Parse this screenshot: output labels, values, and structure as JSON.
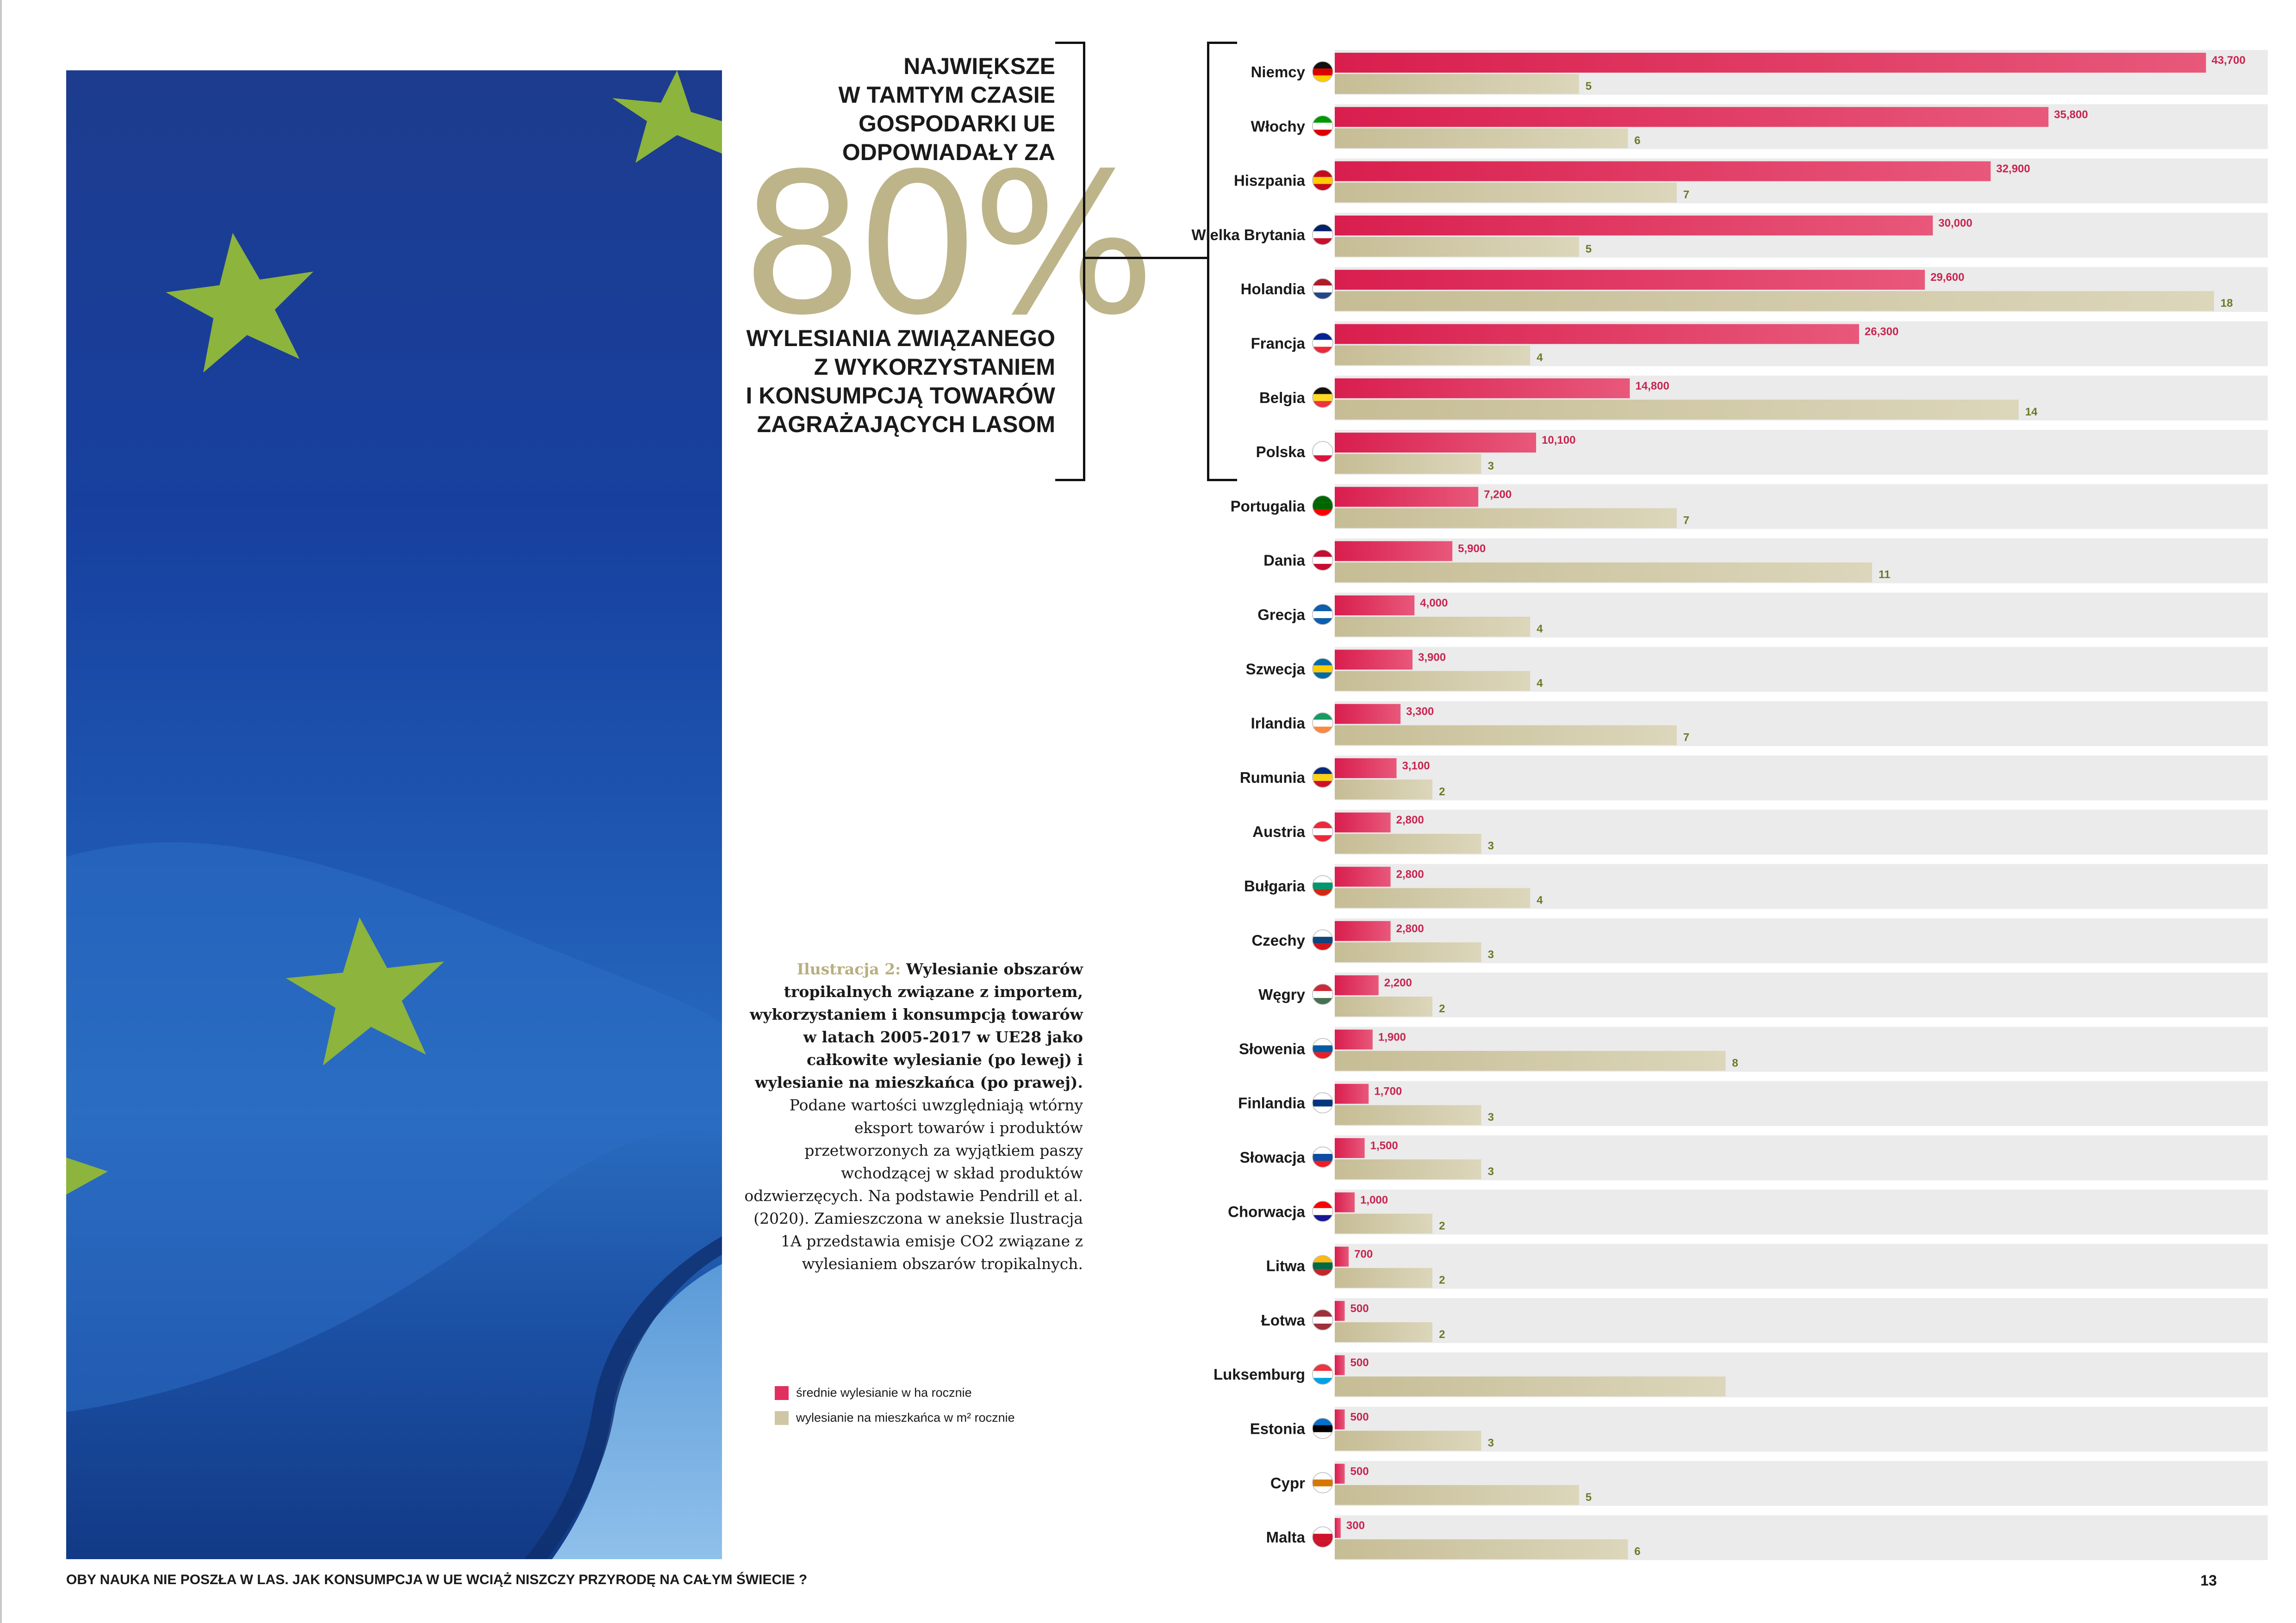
{
  "headline": {
    "top_lines": [
      "NAJWIĘKSZE",
      "W TAMTYM CZASIE",
      "GOSPODARKI UE",
      "ODPOWIADAŁY ZA"
    ],
    "big_number": "80%",
    "bottom_lines": [
      "WYLESIANIA ZWIĄZANEGO",
      "Z WYKORZYSTANIEM",
      "I KONSUMPCJĄ TOWARÓW",
      "ZAGRAŻAJĄCYCH LASOM"
    ]
  },
  "caption": {
    "label": "Ilustracja  2:",
    "bold": " Wylesianie obszarów tropikalnych związane z importem, wykorzystaniem i konsumpcją towarów w latach 2005-2017 w UE28 jako całkowite wylesianie (po lewej) i wylesianie na mieszkańca (po prawej).",
    "text": " Podane wartości uwzględniają wtórny eksport towarów i produktów przetworzonych za wyjątkiem paszy wchodzącej w skład produktów odzwierzęcych. Na podstawie Pendrill et al. (2020). Zamieszczona w aneksie Ilustracja 1A przedstawia emisje CO2 związane z wylesianiem obszarów tropikalnych."
  },
  "legend": {
    "items": [
      {
        "label": "średnie wylesianie w ha rocznie",
        "color": "#e0305f"
      },
      {
        "label": "wylesianie na mieszkańca w m² rocznie",
        "color": "#cfc7a3"
      }
    ]
  },
  "footer": {
    "text": "OBY NAUKA NIE POSZŁA W LAS. JAK KONSUMPCJA W UE WCIĄŻ NISZCZY PRZYRODĘ NA CAŁYM ŚWIECIE ?",
    "page_number": "13"
  },
  "colors": {
    "red_bar_start": "#d91e4e",
    "red_bar_end": "#e8587a",
    "tan_bar_start": "#c6bd95",
    "tan_bar_end": "#dcd6bb",
    "row_background": "#ebebeb",
    "big_number": "#bdb48a"
  },
  "chart_data": {
    "type": "bar",
    "orientation": "horizontal",
    "categories": [
      "Niemcy",
      "Włochy",
      "Hiszpania",
      "Wielka Brytania",
      "Holandia",
      "Francja",
      "Belgia",
      "Polska",
      "Portugalia",
      "Dania",
      "Grecja",
      "Szwecja",
      "Irlandia",
      "Rumunia",
      "Austria",
      "Bułgaria",
      "Czechy",
      "Węgry",
      "Słowenia",
      "Finlandia",
      "Słowacja",
      "Chorwacja",
      "Litwa",
      "Łotwa",
      "Luksemburg",
      "Estonia",
      "Cypr",
      "Malta"
    ],
    "series": [
      {
        "name": "średnie wylesianie w ha rocznie",
        "values": [
          43700,
          35800,
          32900,
          30000,
          29600,
          26300,
          14800,
          10100,
          7200,
          5900,
          4000,
          3900,
          3300,
          3100,
          2800,
          2800,
          2800,
          2200,
          1900,
          1700,
          1500,
          1000,
          700,
          500,
          500,
          500,
          500,
          300
        ],
        "labels": [
          "43,700",
          "35,800",
          "32,900",
          "30,000",
          "29,600",
          "26,300",
          "14,800",
          "10,100",
          "7,200",
          "5,900",
          "4,000",
          "3,900",
          "3,300",
          "3,100",
          "2,800",
          "2,800",
          "2,800",
          "2,200",
          "1,900",
          "1,700",
          "1,500",
          "1,000",
          "700",
          "500",
          "500",
          "500",
          "500",
          "300"
        ]
      },
      {
        "name": "wylesianie na mieszkańca w m² rocznie",
        "values": [
          5,
          6,
          7,
          5,
          18,
          4,
          14,
          3,
          7,
          11,
          4,
          4,
          7,
          2,
          3,
          4,
          3,
          2,
          8,
          3,
          3,
          2,
          2,
          2,
          8,
          3,
          5,
          6
        ],
        "labels": [
          "5",
          "6",
          "7",
          "5",
          "18",
          "4",
          "14",
          "3",
          "7",
          "11",
          "4",
          "4",
          "7",
          "2",
          "3",
          "4",
          "3",
          "2",
          "8",
          "3",
          "3",
          "2",
          "2",
          "2",
          "",
          "3",
          "5",
          "6"
        ]
      }
    ],
    "bracket_count": 8,
    "xlim_area": [
      0,
      46800
    ],
    "xlim_per_capita": [
      0,
      19.1
    ]
  }
}
